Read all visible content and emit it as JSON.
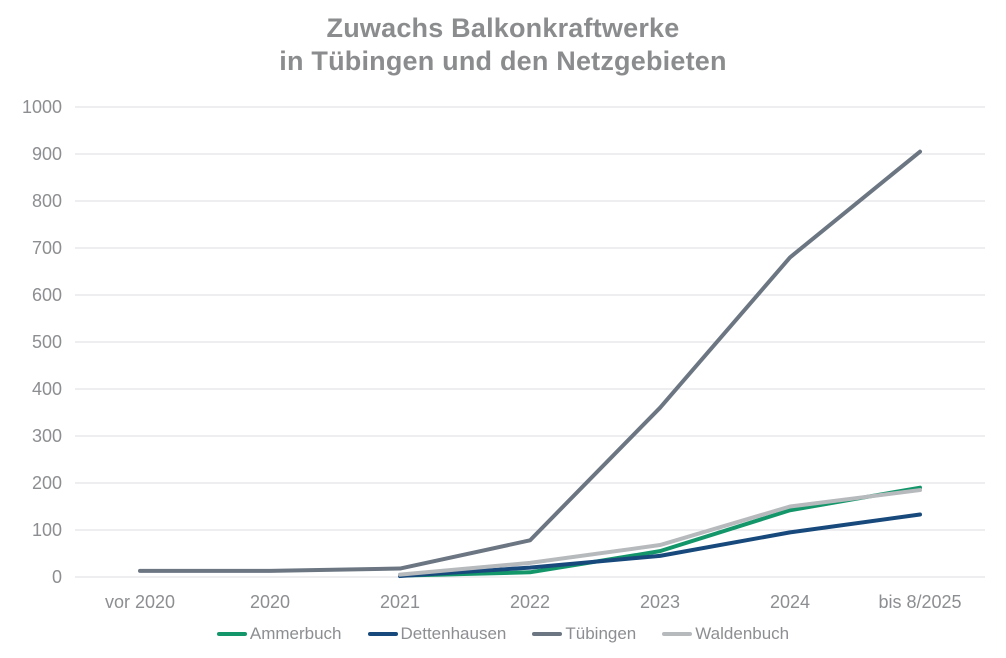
{
  "title": {
    "line1": "Zuwachs Balkonkraftwerke",
    "line2": "in Tübingen und den Netzgebieten",
    "color": "#8a8c8e"
  },
  "chart_data": {
    "type": "line",
    "title": "Zuwachs Balkonkraftwerke in Tübingen und den Netzgebieten",
    "categories": [
      "vor 2020",
      "2020",
      "2021",
      "2022",
      "2023",
      "2024",
      "bis 8/2025"
    ],
    "series": [
      {
        "name": "Ammerbuch",
        "color": "#14966b",
        "values": [
          null,
          null,
          3,
          10,
          55,
          142,
          190
        ]
      },
      {
        "name": "Dettenhausen",
        "color": "#17497c",
        "values": [
          null,
          null,
          2,
          20,
          45,
          95,
          133
        ]
      },
      {
        "name": "Tübingen",
        "color": "#6b7682",
        "values": [
          13,
          13,
          18,
          78,
          360,
          680,
          905
        ]
      },
      {
        "name": "Waldenbuch",
        "color": "#b7babd",
        "values": [
          null,
          null,
          5,
          30,
          68,
          150,
          185
        ]
      }
    ],
    "ylim": [
      0,
      1000
    ],
    "ytick_step": 100,
    "ytick_labels": [
      "0",
      "100",
      "200",
      "300",
      "400",
      "500",
      "600",
      "700",
      "800",
      "900",
      "1000"
    ],
    "xlabel": "",
    "ylabel": "",
    "grid": true,
    "gridline_color": "#dcdee0",
    "axis_label_color": "#8c8e91",
    "line_width": 4,
    "legend_position": "bottom"
  }
}
